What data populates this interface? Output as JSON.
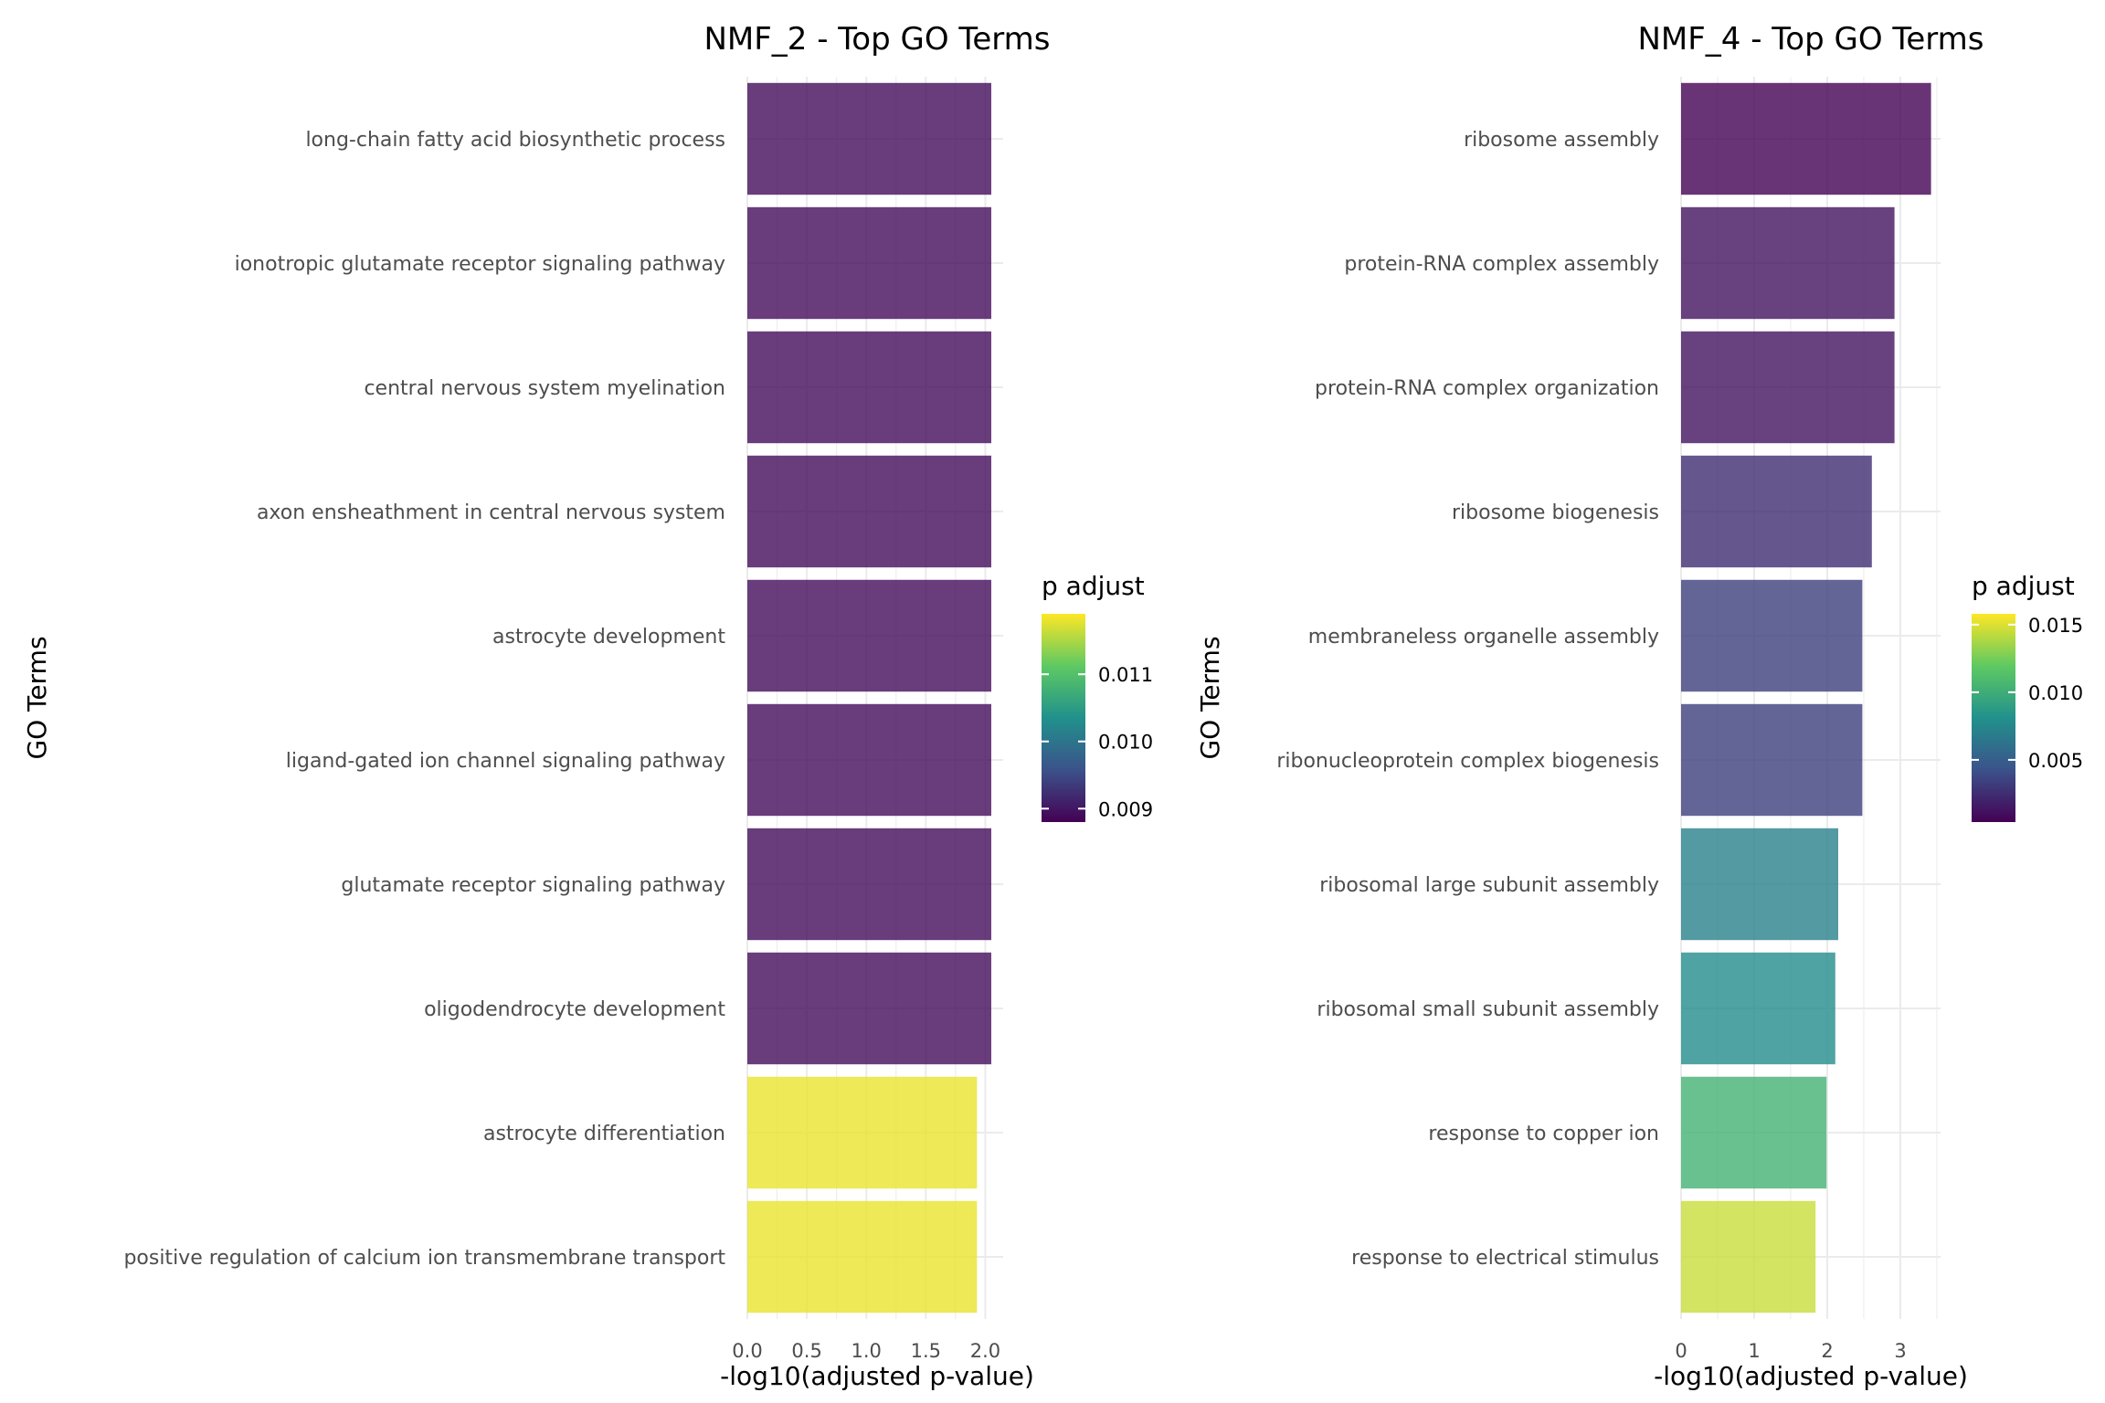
{
  "chart_data": [
    {
      "type": "bar",
      "orientation": "horizontal",
      "title": "NMF_2 - Top GO Terms",
      "xlabel": "-log10(adjusted p-value)",
      "ylabel": "GO Terms",
      "xlim": [
        0,
        2.15
      ],
      "xticks": [
        "0.0",
        "0.5",
        "1.0",
        "1.5",
        "2.0"
      ],
      "grid": true,
      "categories": [
        "long-chain fatty acid biosynthetic process",
        "ionotropic glutamate receptor signaling pathway",
        "central nervous system myelination",
        "axon ensheathment in central nervous system",
        "astrocyte development",
        "ligand-gated ion channel signaling pathway",
        "glutamate receptor signaling pathway",
        "oligodendrocyte development",
        "astrocyte differentiation",
        "positive regulation of calcium ion transmembrane transport"
      ],
      "values": [
        2.05,
        2.05,
        2.05,
        2.05,
        2.05,
        2.05,
        2.05,
        2.05,
        1.93,
        1.93
      ],
      "p_adjust": [
        0.0089,
        0.0089,
        0.0089,
        0.0089,
        0.0089,
        0.0089,
        0.0089,
        0.0089,
        0.0118,
        0.0118
      ],
      "legend": {
        "title": "p adjust",
        "placement": "right",
        "range": [
          0.0088,
          0.0119
        ],
        "ticks": [
          {
            "value": 0.011,
            "label": "0.011"
          },
          {
            "value": 0.01,
            "label": "0.010"
          },
          {
            "value": 0.009,
            "label": "0.009"
          }
        ]
      }
    },
    {
      "type": "bar",
      "orientation": "horizontal",
      "title": "NMF_4 - Top GO Terms",
      "xlabel": "-log10(adjusted p-value)",
      "ylabel": "GO Terms",
      "xlim": [
        0,
        3.55
      ],
      "xticks": [
        "0",
        "1",
        "2",
        "3"
      ],
      "grid": true,
      "categories": [
        "ribosome assembly",
        "protein-RNA complex assembly",
        "protein-RNA complex organization",
        "ribosome biogenesis",
        "membraneless organelle assembly",
        "ribonucleoprotein complex biogenesis",
        "ribosomal large subunit assembly",
        "ribosomal small subunit assembly",
        "response to copper ion",
        "response to electrical stimulus"
      ],
      "values": [
        3.42,
        2.92,
        2.92,
        2.61,
        2.48,
        2.48,
        2.15,
        2.11,
        1.99,
        1.84
      ],
      "p_adjust": [
        0.0004,
        0.0012,
        0.0012,
        0.0025,
        0.0033,
        0.0033,
        0.0071,
        0.0078,
        0.0103,
        0.0145
      ],
      "legend": {
        "title": "p adjust",
        "placement": "right",
        "range": [
          0.0004,
          0.0158
        ],
        "ticks": [
          {
            "value": 0.015,
            "label": "0.015"
          },
          {
            "value": 0.01,
            "label": "0.010"
          },
          {
            "value": 0.005,
            "label": "0.005"
          }
        ]
      }
    }
  ]
}
